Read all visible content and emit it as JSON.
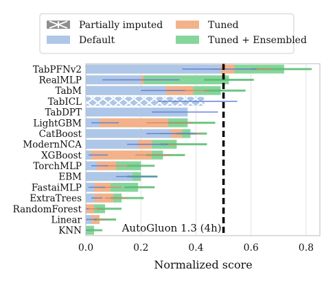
{
  "chart_data": {
    "type": "bar",
    "orientation": "horizontal",
    "xlabel": "Normalized score",
    "xlim": [
      0.0,
      0.85
    ],
    "xticks": [
      "0.0",
      "0.2",
      "0.4",
      "0.6",
      "0.8"
    ],
    "xtick_values": [
      0.0,
      0.2,
      0.4,
      0.6,
      0.8
    ],
    "grid": "vertical",
    "legend_position": "top",
    "legend": [
      {
        "key": "partial",
        "label": "Partially imputed"
      },
      {
        "key": "tuned",
        "label": "Tuned"
      },
      {
        "key": "default",
        "label": "Default"
      },
      {
        "key": "ensembled",
        "label": "Tuned + Ensembled"
      }
    ],
    "colors": {
      "default": "#aec7e8",
      "tuned": "#f3b28a",
      "ensembled": "#86d59b",
      "default_err": "#5f7fd4",
      "tuned_err": "#d18a6a",
      "ensembled_err": "#5cbf73",
      "hatch_fill": "#aec7e8"
    },
    "reference": {
      "label": "AutoGluon 1.3 (4h)",
      "value": 0.5
    },
    "categories": [
      "TabPFNv2",
      "RealMLP",
      "TabM",
      "TabICL",
      "TabDPT",
      "LightGBM",
      "CatBoost",
      "ModernNCA",
      "XGBoost",
      "TorchMLP",
      "EBM",
      "FastaiMLP",
      "ExtraTrees",
      "RandomForest",
      "Linear",
      "KNN"
    ],
    "series": [
      {
        "name": "Default",
        "values": [
          0.49,
          0.2,
          0.29,
          0.43,
          0.37,
          0.05,
          0.31,
          0.19,
          0.02,
          0.04,
          0.17,
          0.03,
          0.03,
          0.0,
          0.02,
          0.0
        ],
        "err_low": [
          0.35,
          0.06,
          0.2,
          0.26,
          0.24,
          0.02,
          0.22,
          0.15,
          0.01,
          0.02,
          0.11,
          0.01,
          0.02,
          0.0,
          0.0,
          0.0
        ],
        "err_high": [
          0.62,
          0.34,
          0.36,
          0.55,
          0.48,
          0.12,
          0.4,
          0.3,
          0.08,
          0.08,
          0.26,
          0.07,
          0.06,
          0.01,
          0.04,
          0.01
        ],
        "partially_imputed": [
          false,
          false,
          false,
          true,
          false,
          false,
          false,
          false,
          false,
          false,
          false,
          false,
          false,
          false,
          false,
          false
        ]
      },
      {
        "name": "Tuned",
        "values": [
          0.54,
          0.21,
          0.39,
          null,
          null,
          0.3,
          0.35,
          0.24,
          0.24,
          0.11,
          null,
          0.09,
          0.1,
          0.03,
          0.05,
          null
        ],
        "err_low": [
          0.46,
          0.12,
          0.3,
          null,
          null,
          0.22,
          0.27,
          0.17,
          0.18,
          0.07,
          null,
          0.05,
          0.07,
          0.01,
          0.03,
          null
        ],
        "err_high": [
          0.68,
          0.34,
          0.45,
          null,
          null,
          0.39,
          0.42,
          0.33,
          0.31,
          0.16,
          null,
          0.13,
          0.15,
          0.06,
          0.08,
          null
        ]
      },
      {
        "name": "Tuned + Ensembled",
        "values": [
          0.72,
          0.52,
          0.49,
          null,
          null,
          0.37,
          0.38,
          0.33,
          0.28,
          0.2,
          0.2,
          0.19,
          0.13,
          0.07,
          0.05,
          0.03
        ],
        "err_low": [
          0.6,
          0.43,
          0.43,
          null,
          null,
          0.3,
          0.33,
          0.27,
          0.22,
          0.15,
          0.15,
          0.14,
          0.09,
          0.04,
          0.03,
          0.01
        ],
        "err_high": [
          0.82,
          0.61,
          0.58,
          null,
          null,
          0.47,
          0.44,
          0.44,
          0.36,
          0.25,
          0.26,
          0.25,
          0.21,
          0.13,
          0.11,
          0.06
        ]
      }
    ]
  }
}
